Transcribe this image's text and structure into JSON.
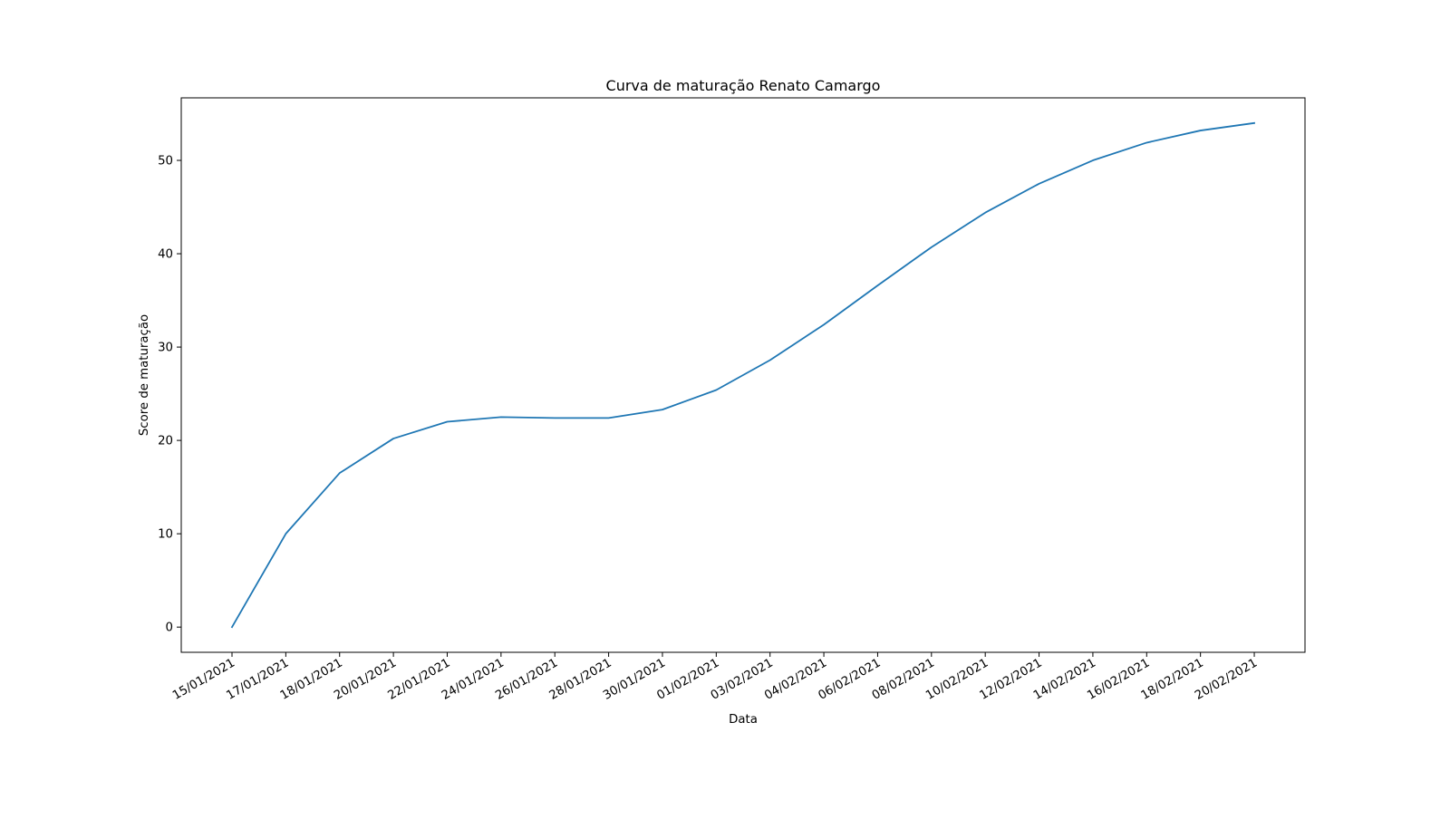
{
  "chart_data": {
    "type": "line",
    "title": "Curva de maturação Renato Camargo",
    "xlabel": "Data",
    "ylabel": "Score de maturação",
    "ylim": [
      -2.7,
      56.7
    ],
    "yticks": [
      0,
      10,
      20,
      30,
      40,
      50
    ],
    "grid": false,
    "legend": "none",
    "categories": [
      "15/01/2021",
      "17/01/2021",
      "18/01/2021",
      "20/01/2021",
      "22/01/2021",
      "24/01/2021",
      "26/01/2021",
      "28/01/2021",
      "30/01/2021",
      "01/02/2021",
      "03/02/2021",
      "04/02/2021",
      "06/02/2021",
      "08/02/2021",
      "10/02/2021",
      "12/02/2021",
      "14/02/2021",
      "16/02/2021",
      "18/02/2021",
      "20/02/2021"
    ],
    "series": [
      {
        "color": "#1f77b4",
        "values": [
          0,
          10.0,
          16.5,
          20.2,
          22.0,
          22.5,
          22.4,
          22.4,
          23.3,
          25.4,
          28.6,
          32.4,
          36.6,
          40.7,
          44.4,
          47.5,
          50.0,
          51.9,
          53.2,
          54.0
        ]
      }
    ]
  }
}
